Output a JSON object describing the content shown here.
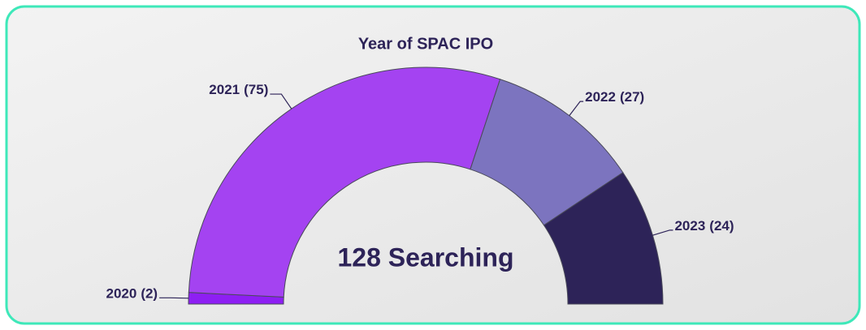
{
  "chart_data": {
    "type": "semi-donut",
    "title": "Year of SPAC IPO",
    "categories": [
      "2020",
      "2021",
      "2022",
      "2023"
    ],
    "values": [
      2,
      75,
      27,
      24
    ],
    "value_labels": [
      "(2)",
      "(75)",
      "(27)",
      "(24)"
    ],
    "colors": [
      "#8e1ff3",
      "#a443f1",
      "#7c74bf",
      "#2d2358"
    ],
    "center_label": "128 Searching"
  }
}
